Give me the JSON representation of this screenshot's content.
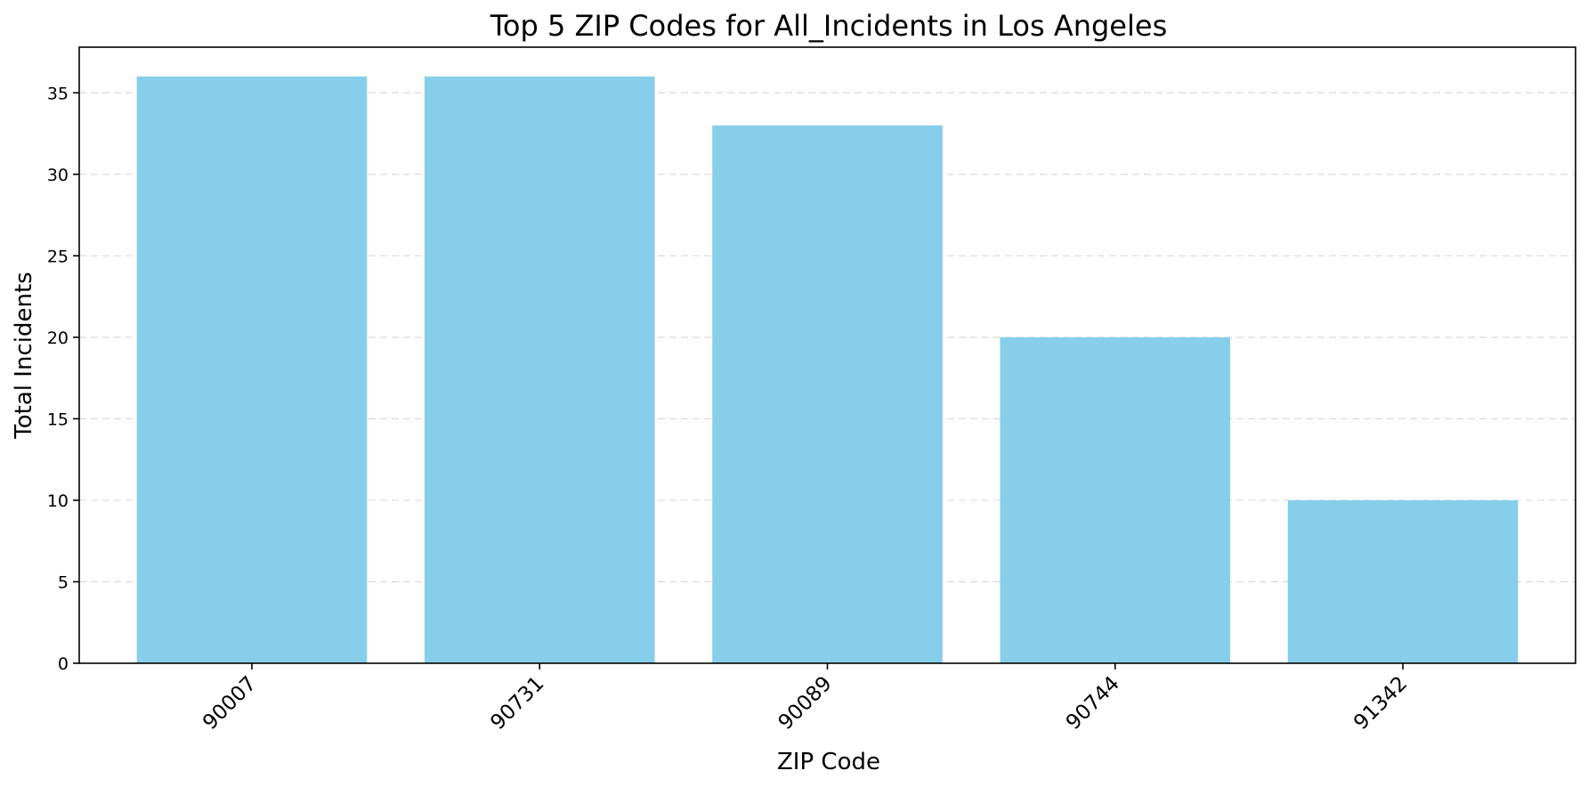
{
  "chart_data": {
    "type": "bar",
    "title": "Top 5 ZIP Codes for All_Incidents in Los Angeles",
    "xlabel": "ZIP Code",
    "ylabel": "Total Incidents",
    "categories": [
      "90007",
      "90731",
      "90089",
      "90744",
      "91342"
    ],
    "values": [
      36,
      36,
      33,
      20,
      10
    ],
    "ylim": [
      0,
      37.8
    ],
    "yticks": [
      0,
      5,
      10,
      15,
      20,
      25,
      30,
      35
    ],
    "grid": "horizontal dashed",
    "legend": "none",
    "bar_color": "#87ceeb",
    "xtick_rotation": "45 degrees"
  }
}
